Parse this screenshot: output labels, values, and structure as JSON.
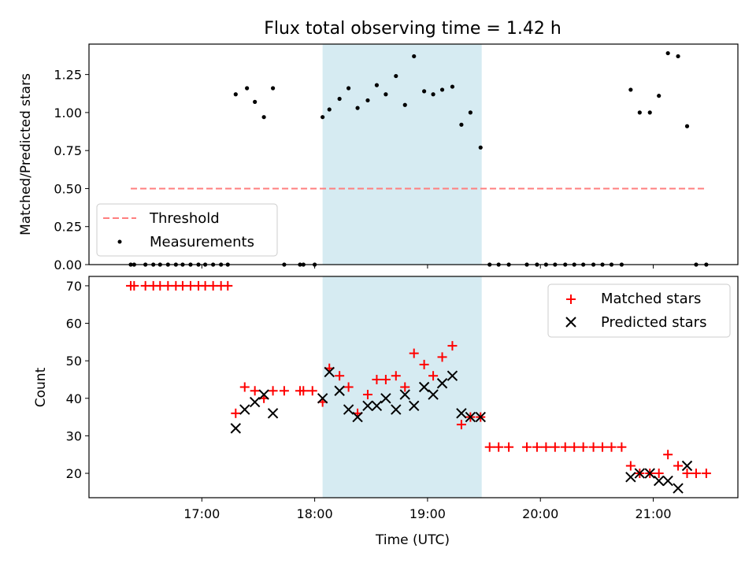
{
  "chart_data": [
    {
      "type": "scatter",
      "title": "Flux total observing time = 1.42 h",
      "ylabel": "Matched/Predicted stars",
      "xlabel": "",
      "ylim": [
        0,
        1.45
      ],
      "yticks": [
        0.0,
        0.25,
        0.5,
        0.75,
        1.0,
        1.25
      ],
      "ytick_labels": [
        "0.00",
        "0.25",
        "0.50",
        "0.75",
        "1.00",
        "1.25"
      ],
      "shaded_x_range_hours": [
        18.07,
        19.48
      ],
      "shade_color": "#add8e6",
      "legend_position": "lower-left",
      "threshold": {
        "name": "Threshold",
        "value": 0.5,
        "x_range_hours": [
          16.37,
          21.47
        ],
        "color": "#ff7f7f"
      },
      "series": [
        {
          "name": "Measurements",
          "color": "#000000",
          "x_hours": [
            16.37,
            16.4,
            16.5,
            16.57,
            16.63,
            16.7,
            16.77,
            16.83,
            16.9,
            16.97,
            17.03,
            17.1,
            17.17,
            17.23,
            17.3,
            17.4,
            17.47,
            17.55,
            17.63,
            17.73,
            17.87,
            17.9,
            18.0,
            18.07,
            18.13,
            18.22,
            18.3,
            18.38,
            18.47,
            18.55,
            18.63,
            18.72,
            18.8,
            18.88,
            18.97,
            19.05,
            19.13,
            19.22,
            19.3,
            19.38,
            19.47,
            19.55,
            19.63,
            19.72,
            19.88,
            19.97,
            20.05,
            20.13,
            20.22,
            20.3,
            20.38,
            20.47,
            20.55,
            20.63,
            20.72,
            20.8,
            20.88,
            20.97,
            21.05,
            21.13,
            21.22,
            21.3,
            21.38,
            21.47
          ],
          "y": [
            0,
            0,
            0,
            0,
            0,
            0,
            0,
            0,
            0,
            0,
            0,
            0,
            0,
            0,
            1.12,
            1.16,
            1.07,
            0.97,
            1.16,
            0,
            0,
            0,
            0,
            0.97,
            1.02,
            1.09,
            1.16,
            1.03,
            1.08,
            1.18,
            1.12,
            1.24,
            1.05,
            1.37,
            1.14,
            1.12,
            1.15,
            1.17,
            0.92,
            1.0,
            0.77,
            0,
            0,
            0,
            0,
            0,
            0,
            0,
            0,
            0,
            0,
            0,
            0,
            0,
            0,
            1.15,
            1.0,
            1.0,
            1.11,
            1.39,
            1.37,
            0.91,
            0,
            0
          ]
        }
      ]
    },
    {
      "type": "scatter",
      "title": "",
      "ylabel": "Count",
      "xlabel": "Time (UTC)",
      "ylim": [
        13.5,
        72.5
      ],
      "xlim_hours": [
        16.0,
        21.75
      ],
      "xticks_hours": [
        17,
        18,
        19,
        20,
        21
      ],
      "xtick_labels": [
        "17:00",
        "18:00",
        "19:00",
        "20:00",
        "21:00"
      ],
      "yticks": [
        20,
        30,
        40,
        50,
        60,
        70
      ],
      "ytick_labels": [
        "20",
        "30",
        "40",
        "50",
        "60",
        "70"
      ],
      "shaded_x_range_hours": [
        18.07,
        19.48
      ],
      "legend_position": "upper-right",
      "series": [
        {
          "name": "Matched stars",
          "marker": "plus",
          "color": "#ff0000",
          "x_hours": [
            16.37,
            16.4,
            16.5,
            16.57,
            16.63,
            16.7,
            16.77,
            16.83,
            16.9,
            16.97,
            17.03,
            17.1,
            17.17,
            17.23,
            17.3,
            17.38,
            17.47,
            17.55,
            17.63,
            17.73,
            17.87,
            17.9,
            17.98,
            18.07,
            18.13,
            18.22,
            18.3,
            18.38,
            18.47,
            18.55,
            18.63,
            18.72,
            18.8,
            18.88,
            18.97,
            19.05,
            19.13,
            19.22,
            19.3,
            19.38,
            19.47,
            19.55,
            19.63,
            19.72,
            19.88,
            19.97,
            20.05,
            20.13,
            20.22,
            20.3,
            20.38,
            20.47,
            20.55,
            20.63,
            20.72,
            20.8,
            20.88,
            20.97,
            21.05,
            21.13,
            21.22,
            21.3,
            21.38,
            21.47
          ],
          "y": [
            70,
            70,
            70,
            70,
            70,
            70,
            70,
            70,
            70,
            70,
            70,
            70,
            70,
            70,
            36,
            43,
            42,
            40,
            42,
            42,
            42,
            42,
            42,
            39,
            48,
            46,
            43,
            36,
            41,
            45,
            45,
            46,
            43,
            52,
            49,
            46,
            51,
            54,
            33,
            35,
            35,
            27,
            27,
            27,
            27,
            27,
            27,
            27,
            27,
            27,
            27,
            27,
            27,
            27,
            27,
            22,
            20,
            20,
            20,
            25,
            22,
            20,
            20,
            20
          ]
        },
        {
          "name": "Predicted stars",
          "marker": "x",
          "color": "#000000",
          "x_hours": [
            17.3,
            17.38,
            17.47,
            17.55,
            17.63,
            18.07,
            18.13,
            18.22,
            18.3,
            18.38,
            18.47,
            18.55,
            18.63,
            18.72,
            18.8,
            18.88,
            18.97,
            19.05,
            19.13,
            19.22,
            19.3,
            19.38,
            19.47,
            20.8,
            20.88,
            20.97,
            21.05,
            21.13,
            21.22,
            21.3
          ],
          "y": [
            32,
            37,
            39,
            41,
            36,
            40,
            47,
            42,
            37,
            35,
            38,
            38,
            40,
            37,
            41,
            38,
            43,
            41,
            44,
            46,
            36,
            35,
            35,
            19,
            20,
            20,
            18,
            18,
            16,
            22
          ]
        }
      ]
    }
  ]
}
